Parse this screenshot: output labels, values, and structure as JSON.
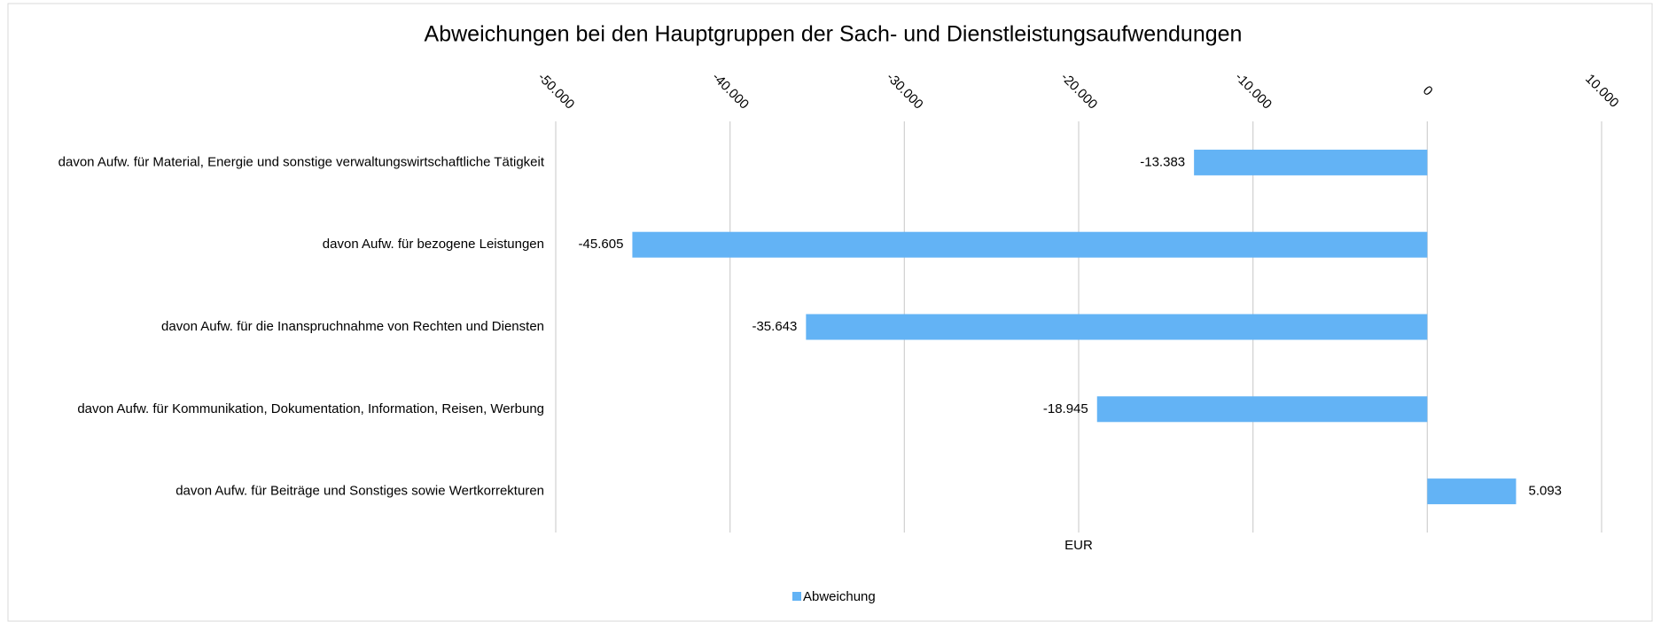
{
  "chart_data": {
    "type": "bar",
    "orientation": "horizontal",
    "title": "Abweichungen bei den Hauptgruppen der Sach- und Dienstleistungsaufwendungen",
    "x_label": "EUR",
    "categories": [
      "davon Aufw. für Material, Energie und sonstige verwaltungswirtschaftliche Tätigkeit",
      "davon Aufw. für bezogene Leistungen",
      "davon Aufw. für die Inanspruchnahme von Rechten und Diensten",
      "davon Aufw. für Kommunikation, Dokumentation, Information, Reisen, Werbung",
      "davon Aufw. für Beiträge und Sonstiges sowie Wertkorrekturen"
    ],
    "series": [
      {
        "name": "Abweichung",
        "color": "#63b3f5",
        "values": [
          -13383,
          -45605,
          -35643,
          -18945,
          5093
        ],
        "value_labels": [
          "-13.383",
          "-45.605",
          "-35.643",
          "-18.945",
          "5.093"
        ]
      }
    ],
    "xlim": [
      -50000,
      10000
    ],
    "xticks": [
      {
        "value": -50000,
        "label": "-50.000"
      },
      {
        "value": -40000,
        "label": "-40.000"
      },
      {
        "value": -30000,
        "label": "-30.000"
      },
      {
        "value": -20000,
        "label": "-20.000"
      },
      {
        "value": -10000,
        "label": "-10.000"
      },
      0,
      {
        "value": 10000,
        "label": "10.000"
      }
    ],
    "grid": true,
    "legend": "bottom"
  }
}
